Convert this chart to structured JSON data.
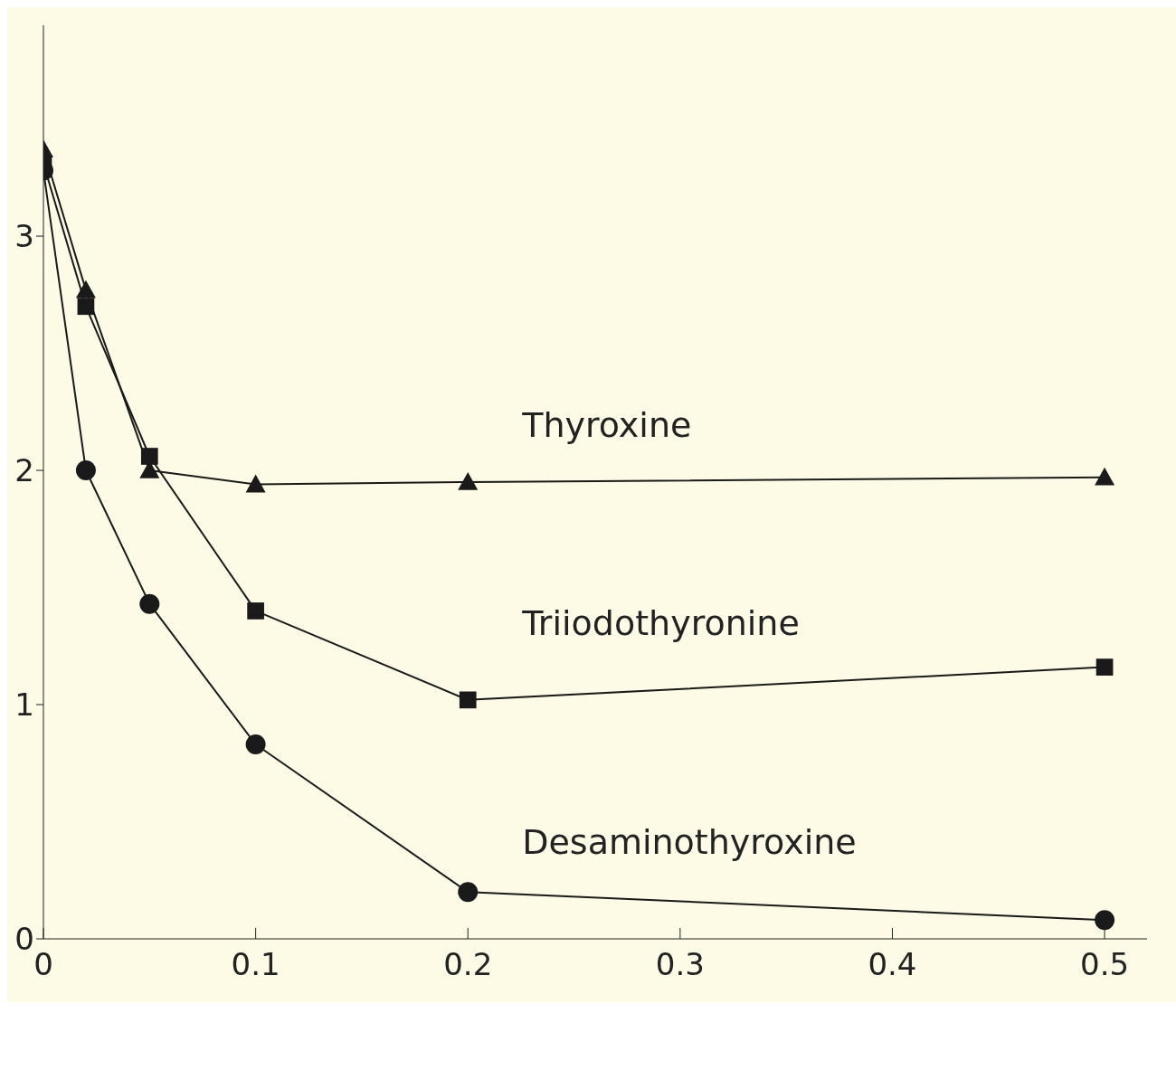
{
  "chart_data": {
    "type": "line",
    "x": [
      0,
      0.02,
      0.05,
      0.1,
      0.2,
      0.5
    ],
    "series": [
      {
        "name": "Thyroxine",
        "color": "#1a1a1a",
        "marker": "triangle",
        "values": [
          3.37,
          2.77,
          2.0,
          1.94,
          1.95,
          1.97
        ]
      },
      {
        "name": "Triiodothyronine",
        "color": "#1a1a1a",
        "marker": "square",
        "values": [
          3.31,
          2.7,
          2.06,
          1.4,
          1.02,
          1.16
        ]
      },
      {
        "name": "Desaminothyroxine",
        "color": "#1a1a1a",
        "marker": "circle",
        "values": [
          3.28,
          2.0,
          1.43,
          0.83,
          0.2,
          0.08
        ]
      }
    ],
    "xlim": [
      0,
      0.52
    ],
    "xticks": [
      0,
      0.1,
      0.2,
      0.3,
      0.4,
      0.5
    ],
    "ylim": [
      0,
      3.9
    ],
    "yticks": [
      0,
      1,
      2,
      3
    ],
    "grid": false,
    "legend": false
  }
}
